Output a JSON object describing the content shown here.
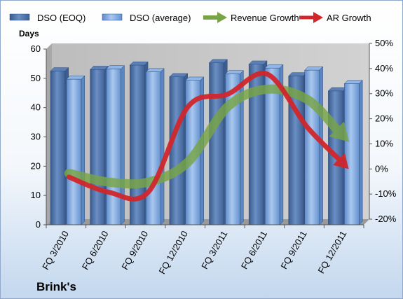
{
  "chart_data": {
    "type": "bar",
    "categories": [
      "FQ 3/2010",
      "FQ 6/2010",
      "FQ 9/2010",
      "FQ 12/2010",
      "FQ 3/2011",
      "FQ 6/2011",
      "FQ 9/2011",
      "FQ 12/2011"
    ],
    "series": [
      {
        "name": "DSO (EOQ)",
        "axis": "left",
        "kind": "bar",
        "color": "#4f6ea3",
        "values": [
          52.5,
          53,
          54.5,
          50.5,
          55.3,
          54.8,
          50.8,
          45.7
        ]
      },
      {
        "name": "DSO (average)",
        "axis": "left",
        "kind": "bar",
        "color": "#6f9bd3",
        "values": [
          49.7,
          53.2,
          52.2,
          49.3,
          51.5,
          53.5,
          52.8,
          48.2
        ]
      },
      {
        "name": "Revenue Growth",
        "axis": "right",
        "kind": "arrow-line",
        "color": "#77a545",
        "values": [
          0.5,
          -3,
          -3,
          5,
          27,
          34,
          30,
          14
        ]
      },
      {
        "name": "AR Growth",
        "axis": "right",
        "kind": "arrow-line",
        "color": "#d1262b",
        "values": [
          -1,
          -7,
          -7,
          27,
          32,
          40,
          19,
          3
        ]
      }
    ],
    "left_axis": {
      "title": "Days",
      "min": 0,
      "max": 60,
      "step": 10,
      "tick_labels": [
        "0",
        "10",
        "20",
        "30",
        "40",
        "50",
        "60"
      ]
    },
    "right_axis": {
      "min": -20,
      "max": 50,
      "step": 10,
      "unit": "%",
      "tick_labels": [
        "-20%",
        "-10%",
        "0%",
        "10%",
        "20%",
        "30%",
        "40%",
        "50%"
      ]
    },
    "grid": false,
    "legend": {
      "position": "top"
    },
    "footer_label": "Brink's",
    "colors": {
      "background_top": "#ffffff",
      "background_bottom": "#c3d7ee",
      "plot_area": "#c8c8c8"
    }
  }
}
